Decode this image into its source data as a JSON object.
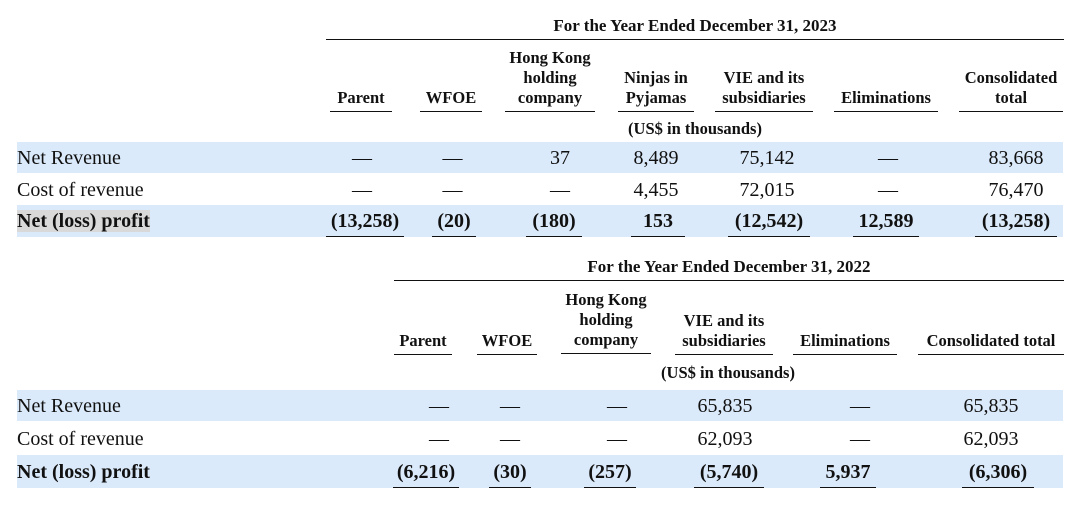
{
  "dash": "—",
  "table2023": {
    "period": "For the Year Ended December 31, 2023",
    "units": "(US$ in thousands)",
    "columns": {
      "parent": [
        "Parent"
      ],
      "wfoe": [
        "WFOE"
      ],
      "hk": [
        "Hong Kong",
        "holding",
        "company"
      ],
      "ninjas": [
        "Ninjas in",
        "Pyjamas"
      ],
      "vie": [
        "VIE and its",
        "subsidiaries"
      ],
      "elim": [
        "Eliminations"
      ],
      "consol": [
        "Consolidated",
        "total"
      ]
    },
    "rows": {
      "net_revenue": {
        "label": "Net Revenue",
        "parent": "—",
        "wfoe": "—",
        "hk": "37",
        "ninjas": "8,489",
        "vie": "75,142",
        "elim": "—",
        "consol": "83,668"
      },
      "cost_of_revenue": {
        "label": "Cost of revenue",
        "parent": "—",
        "wfoe": "—",
        "hk": "—",
        "ninjas": "4,455",
        "vie": "72,015",
        "elim": "—",
        "consol": "76,470"
      },
      "net_profit": {
        "label": "Net (loss) profit",
        "parent": "(13,258)",
        "wfoe": "(20)",
        "hk": "(180)",
        "ninjas": "153",
        "vie": "(12,542)",
        "elim": "12,589",
        "consol": "(13,258)"
      }
    }
  },
  "table2022": {
    "period": "For the Year Ended December 31, 2022",
    "units": "(US$ in thousands)",
    "columns": {
      "parent": [
        "Parent"
      ],
      "wfoe": [
        "WFOE"
      ],
      "hk": [
        "Hong Kong",
        "holding",
        "company"
      ],
      "vie": [
        "VIE and its",
        "subsidiaries"
      ],
      "elim": [
        "Eliminations"
      ],
      "consol": [
        "Consolidated total"
      ]
    },
    "rows": {
      "net_revenue": {
        "label": "Net Revenue",
        "parent": "—",
        "wfoe": "—",
        "hk": "—",
        "vie": "65,835",
        "elim": "—",
        "consol": "65,835"
      },
      "cost_of_revenue": {
        "label": "Cost of revenue",
        "parent": "—",
        "wfoe": "—",
        "hk": "—",
        "vie": "62,093",
        "elim": "—",
        "consol": "62,093"
      },
      "net_profit": {
        "label": "Net (loss) profit",
        "parent": "(6,216)",
        "wfoe": "(30)",
        "hk": "(257)",
        "vie": "(5,740)",
        "elim": "5,937",
        "consol": "(6,306)"
      }
    }
  }
}
